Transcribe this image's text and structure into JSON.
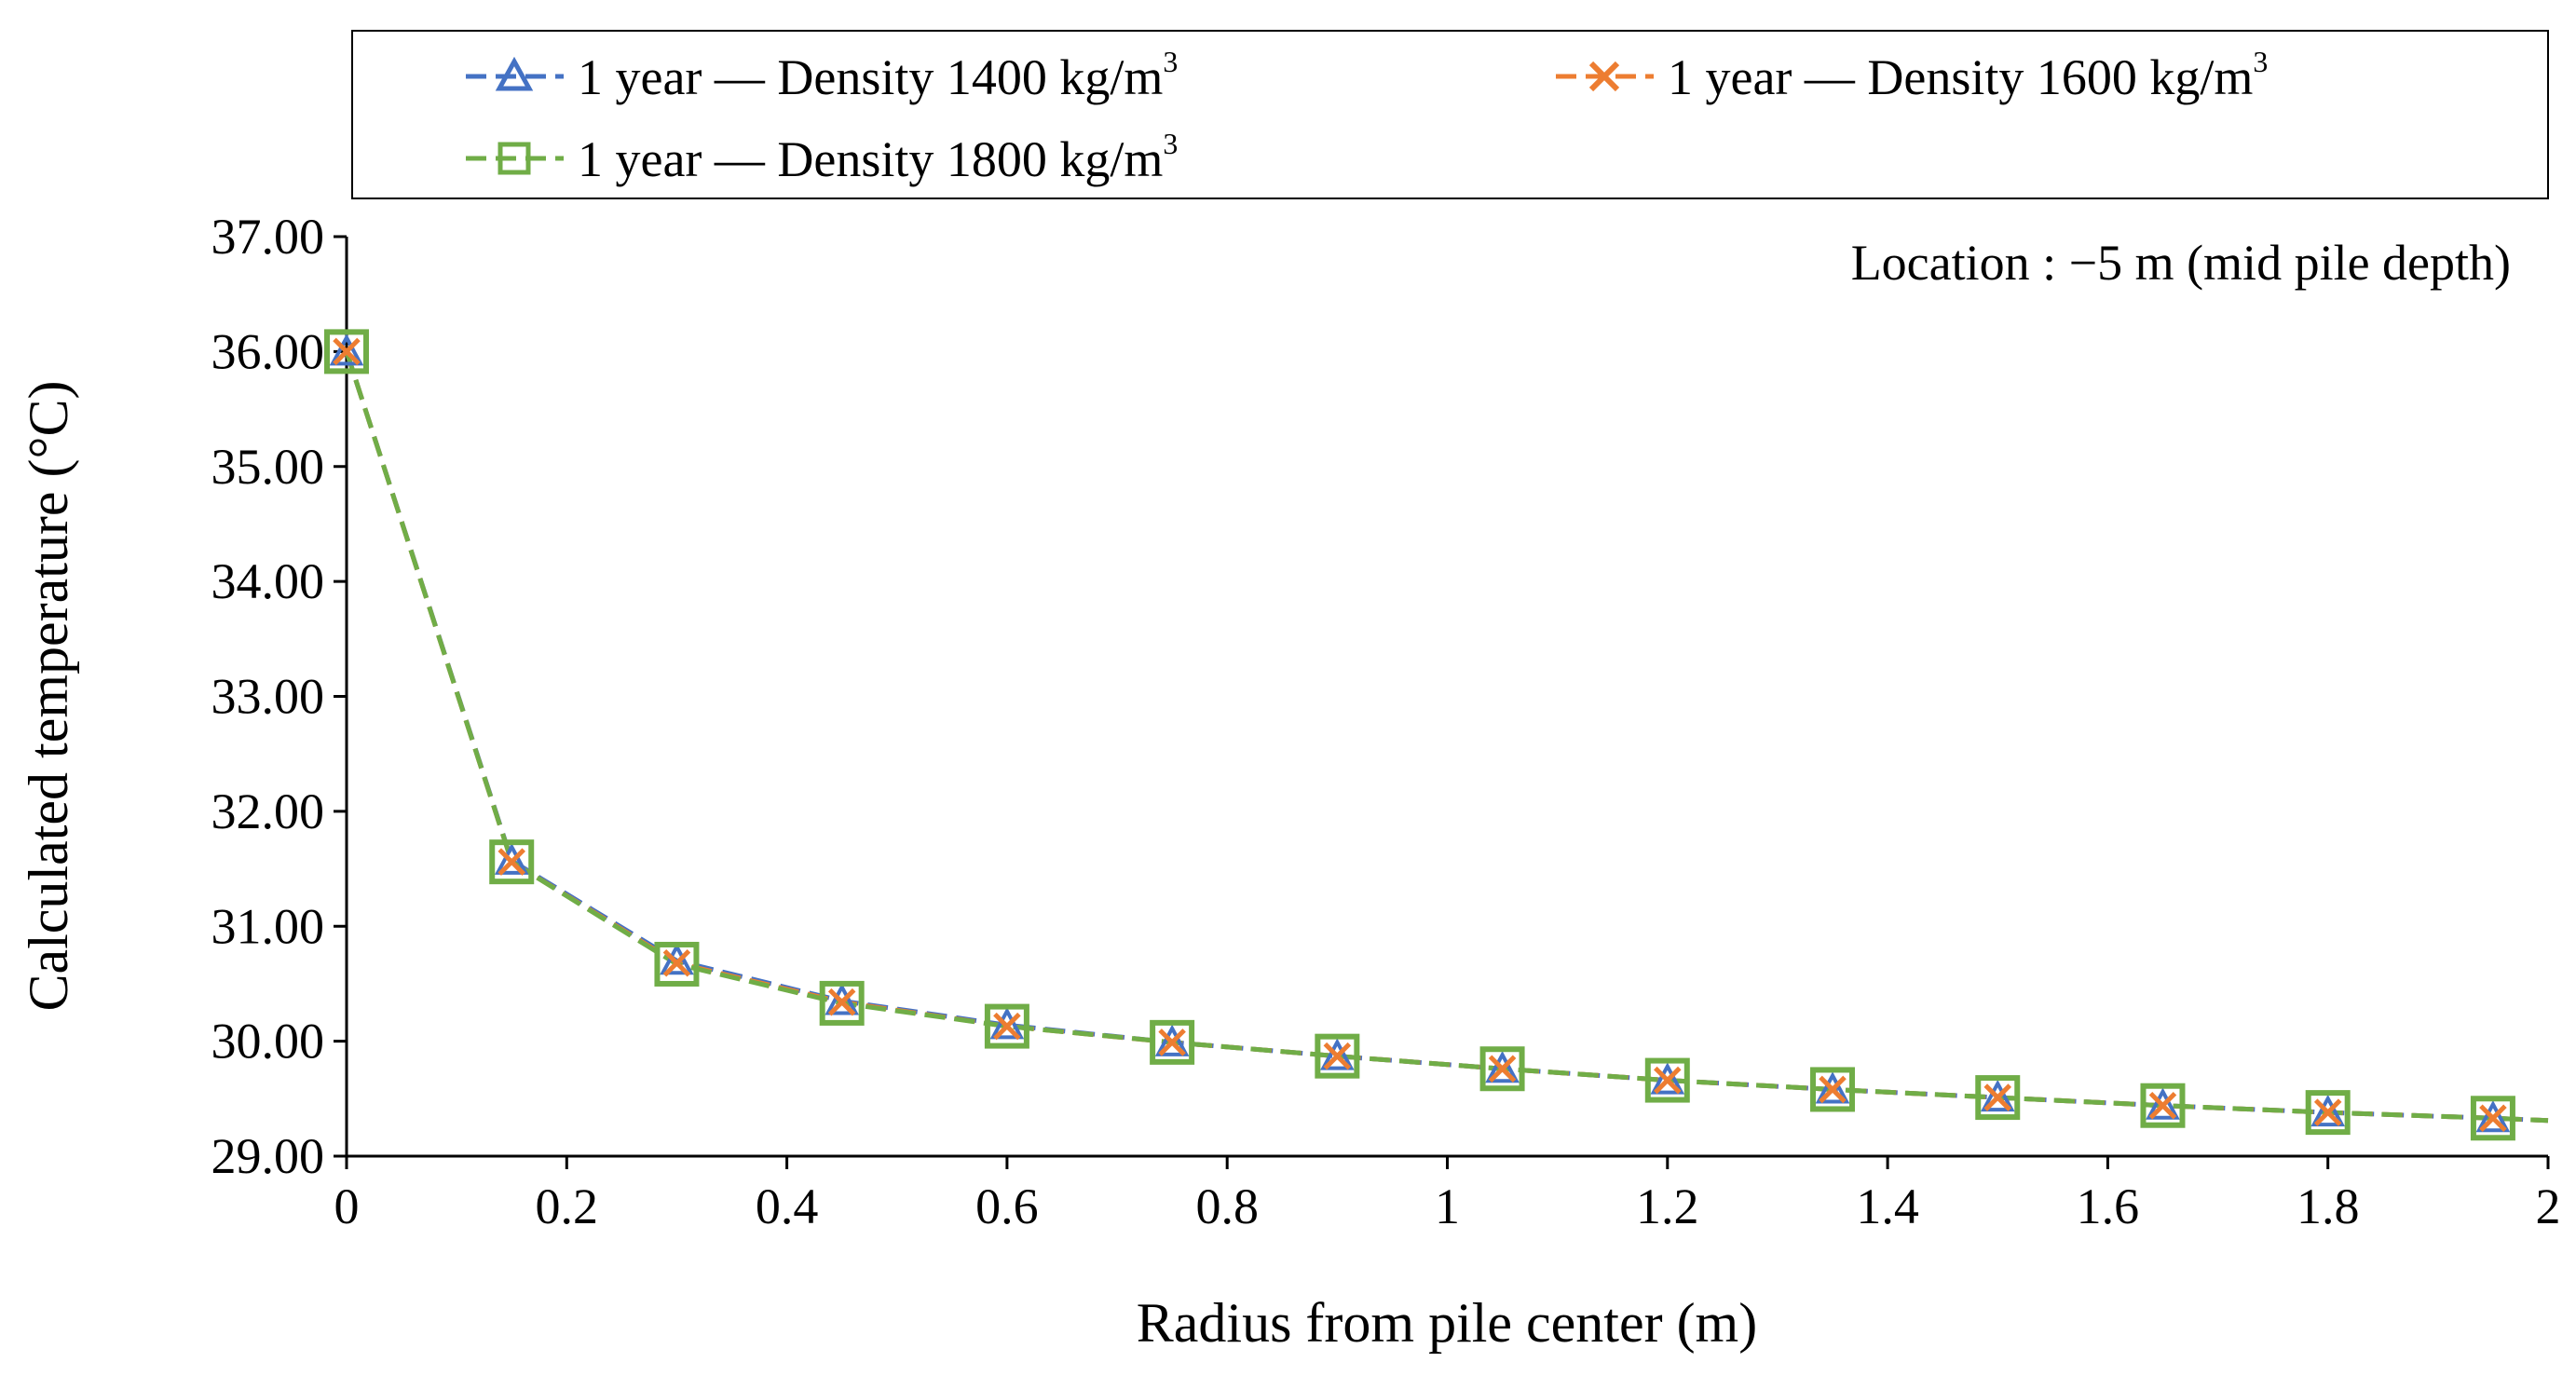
{
  "chart_data": {
    "type": "line",
    "title": "",
    "xlabel": "Radius from pile center (m)",
    "ylabel": "Calculated temperature (°C)",
    "xlim": [
      0,
      2
    ],
    "ylim": [
      29,
      37
    ],
    "xticks": [
      0,
      0.2,
      0.4,
      0.6,
      0.8,
      1,
      1.2,
      1.4,
      1.6,
      1.8,
      2
    ],
    "xtick_labels": [
      "0",
      "0.2",
      "0.4",
      "0.6",
      "0.8",
      "1",
      "1.2",
      "1.4",
      "1.6",
      "1.8",
      "2"
    ],
    "yticks": [
      29,
      30,
      31,
      32,
      33,
      34,
      35,
      36,
      37
    ],
    "ytick_labels": [
      "29.00",
      "30.00",
      "31.00",
      "32.00",
      "33.00",
      "34.00",
      "35.00",
      "36.00",
      "37.00"
    ],
    "grid": false,
    "legend_position": "top",
    "annotation": "Location : −5 m (mid pile depth)",
    "x": [
      0,
      0.15,
      0.3,
      0.45,
      0.6,
      0.75,
      0.9,
      1.05,
      1.2,
      1.35,
      1.5,
      1.65,
      1.8,
      1.95
    ],
    "line_end": {
      "x": 2,
      "y": 29.31
    },
    "series": [
      {
        "name": "1 year — Density 1400 kg/m³",
        "name_prefix": "1 year — Density 1400 kg/m",
        "name_sup": "3",
        "color": "#4472C4",
        "marker": "triangle",
        "values": [
          36.0,
          31.57,
          30.7,
          30.35,
          30.14,
          29.99,
          29.87,
          29.76,
          29.66,
          29.58,
          29.51,
          29.44,
          29.38,
          29.33
        ]
      },
      {
        "name": "1 year — Density 1600 kg/m³",
        "name_prefix": "1 year — Density 1600 kg/m",
        "name_sup": "3",
        "color": "#ED7D31",
        "marker": "x",
        "values": [
          36.0,
          31.56,
          30.68,
          30.34,
          30.13,
          29.99,
          29.87,
          29.76,
          29.66,
          29.58,
          29.51,
          29.44,
          29.38,
          29.33
        ]
      },
      {
        "name": "1 year — Density 1800 kg/m³",
        "name_prefix": "1 year — Density 1800 kg/m",
        "name_sup": "3",
        "color": "#70AD47",
        "marker": "square",
        "values": [
          36.0,
          31.56,
          30.67,
          30.33,
          30.13,
          29.99,
          29.87,
          29.76,
          29.66,
          29.58,
          29.51,
          29.44,
          29.38,
          29.33
        ]
      }
    ]
  }
}
